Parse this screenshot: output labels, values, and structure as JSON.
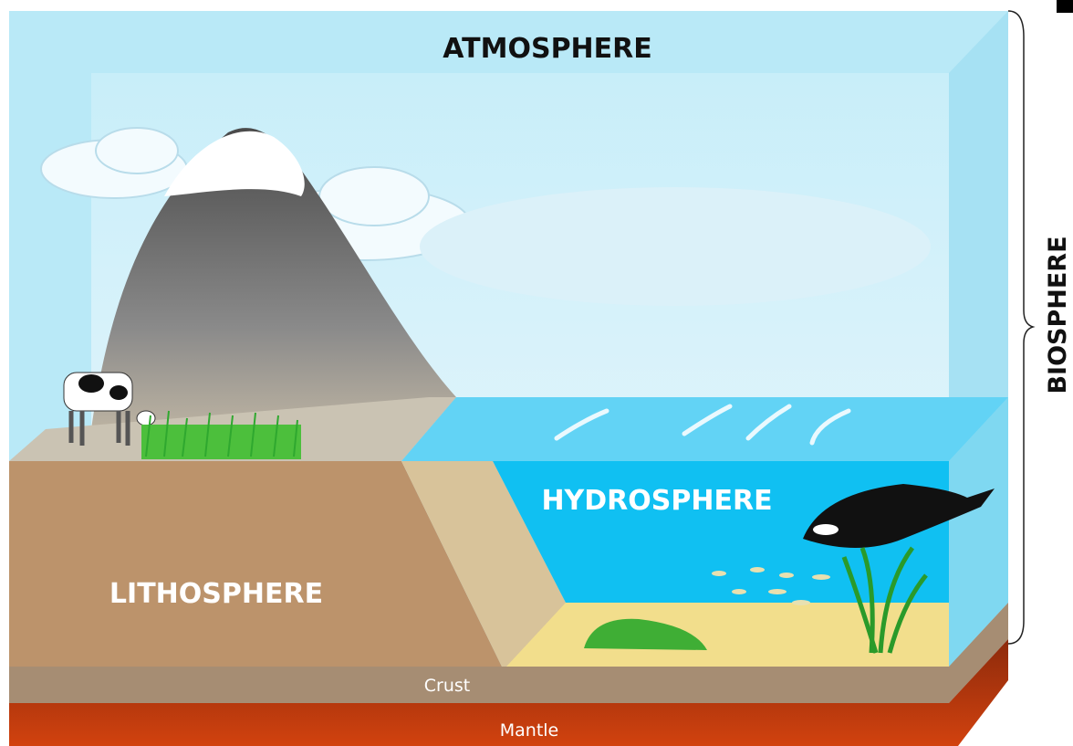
{
  "labels": {
    "atmosphere": "ATMOSPHERE",
    "hydrosphere": "HYDROSPHERE",
    "lithosphere": "LITHOSPHERE",
    "crust": "Crust",
    "mantle": "Mantle",
    "biosphere": "BIOSPHERE"
  }
}
